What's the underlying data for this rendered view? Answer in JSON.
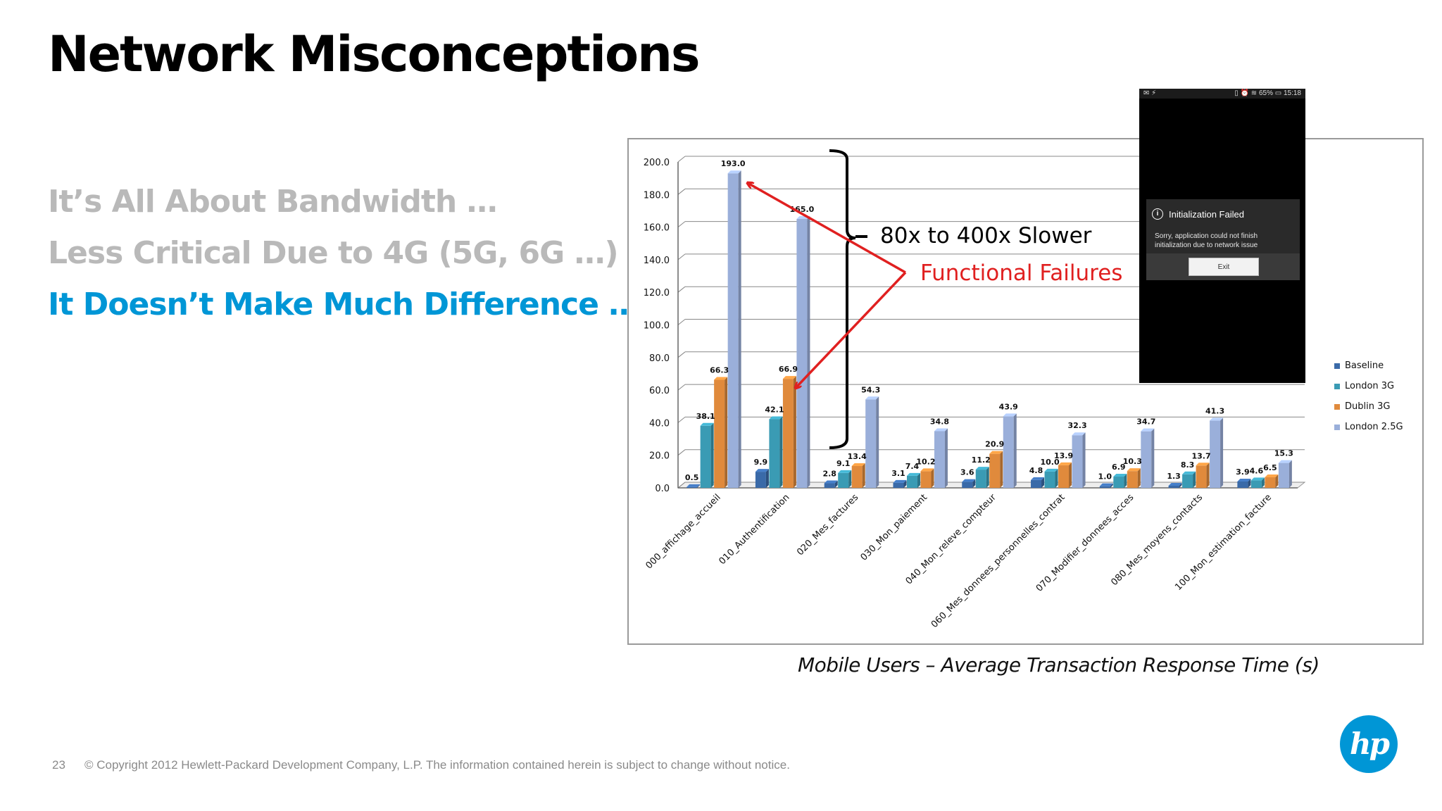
{
  "slide": {
    "title": "Network Misconceptions",
    "bullets": [
      {
        "text": "It’s All About Bandwidth …",
        "color": "#b9b9b9"
      },
      {
        "text": "Less Critical Due to 4G (5G, 6G …)",
        "color": "#b9b9b9"
      },
      {
        "text": "It Doesn’t Make Much Difference …",
        "color": "#0096d6"
      }
    ],
    "caption": "Mobile Users – Average Transaction Response Time (s)",
    "footer": {
      "page_number": "23",
      "copyright": "© Copyright 2012 Hewlett-Packard Development Company, L.P.  The information contained herein is subject to change without notice."
    },
    "logo_text": "hp",
    "logo_color": "#0096d6"
  },
  "annotations": {
    "slower": "80x to 400x Slower",
    "failures": "Functional Failures",
    "failures_color": "#e02020"
  },
  "phone": {
    "status_left": "✉ ⚡",
    "status_right": "▯ ⏰ ≋ 65% ▭ 15:18",
    "dialog_title": "Initialization Failed",
    "dialog_message": "Sorry, application could not finish initialization due to network issue",
    "exit_label": "Exit",
    "info_icon": "i"
  },
  "chart_data": {
    "type": "bar",
    "title": "",
    "xlabel": "",
    "ylabel": "",
    "ylim": [
      0,
      200
    ],
    "yticks": [
      "0.0",
      "20.0",
      "40.0",
      "60.0",
      "80.0",
      "100.0",
      "120.0",
      "140.0",
      "160.0",
      "180.0",
      "200.0"
    ],
    "grid": true,
    "legend_position": "right",
    "categories": [
      "000_affichage_accueil",
      "010_Authentification",
      "020_Mes_factures",
      "030_Mon_paiement",
      "040_Mon_releve_compteur",
      "060_Mes_donnees_personnelles_contrat",
      "070_Modifier_donnees_acces",
      "080_Mes_moyens_contacts",
      "100_Mon_estimation_facture"
    ],
    "series": [
      {
        "name": "Baseline",
        "color": "#3a6aa8",
        "values": [
          0.5,
          9.9,
          2.8,
          3.1,
          3.6,
          4.8,
          1.0,
          1.3,
          3.9
        ],
        "labels": [
          "0.5",
          "9.9",
          "2.8",
          "3.1",
          "3.6",
          "4.8",
          "1.0",
          "1.3",
          "3.9"
        ]
      },
      {
        "name": "London 3G",
        "color": "#3a9bb4",
        "values": [
          38.1,
          42.1,
          9.1,
          7.4,
          11.2,
          10.0,
          6.9,
          8.3,
          4.6
        ],
        "labels": [
          "38.1",
          "42.1",
          "9.1",
          "7.4",
          "11.2",
          "10.0",
          "6.9",
          "8.3",
          "4.6"
        ]
      },
      {
        "name": "Dublin 3G",
        "color": "#e08a3c",
        "values": [
          66.3,
          66.9,
          13.4,
          10.2,
          20.9,
          13.9,
          10.3,
          13.7,
          6.5
        ],
        "labels": [
          "66.3",
          "66.9",
          "13.4",
          "10.2",
          "20.9",
          "13.9",
          "10.3",
          "13.7",
          "6.5"
        ]
      },
      {
        "name": "London 2.5G",
        "color": "#9aafda",
        "values": [
          193.0,
          165.0,
          54.3,
          34.8,
          43.9,
          32.3,
          34.7,
          41.3,
          15.3
        ],
        "labels": [
          "193.0",
          "165.0",
          "54.3",
          "34.8",
          "43.9",
          "32.3",
          "34.7",
          "41.3",
          "15.3"
        ]
      }
    ]
  }
}
